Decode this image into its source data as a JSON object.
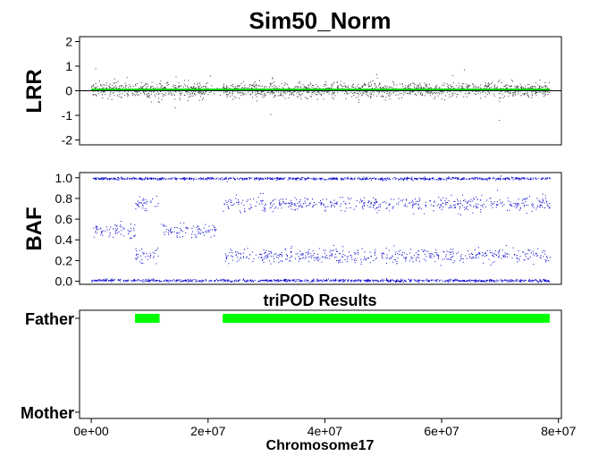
{
  "chart_data": [
    {
      "type": "scatter",
      "panel": "LRR",
      "title": "Sim50_Norm",
      "ylabel": "LRR",
      "ylim": [
        -2.2,
        2.2
      ],
      "yticks": [
        "-2",
        "-1",
        "0",
        "1",
        "2"
      ],
      "ytick_values": [
        -2,
        -1,
        0,
        1,
        2
      ],
      "xlim": [
        -2000000,
        80500000
      ],
      "point_color": "#333333",
      "line_color": "#00cc00",
      "reference_line": 0,
      "x_range": [
        0,
        78500000
      ],
      "trend": 0.05,
      "spread": 0.15,
      "sparse_region": [
        20000000,
        22500000
      ]
    },
    {
      "type": "scatter",
      "panel": "BAF",
      "ylabel": "BAF",
      "ylim": [
        -0.03,
        1.05
      ],
      "yticks": [
        "0.0",
        "0.2",
        "0.4",
        "0.6",
        "0.8",
        "1.0"
      ],
      "ytick_values": [
        0,
        0.2,
        0.4,
        0.6,
        0.8,
        1.0
      ],
      "xlim": [
        -2000000,
        80500000
      ],
      "point_color": "#0000cc",
      "bands": [
        {
          "x": [
            0,
            78500000
          ],
          "y": 0.01,
          "label": "homozygous-low"
        },
        {
          "x": [
            0,
            78500000
          ],
          "y": 0.995,
          "label": "homozygous-high"
        },
        {
          "x": [
            0,
            7500000
          ],
          "y": 0.5,
          "label": "heterozygous"
        },
        {
          "x": [
            7500000,
            11500000
          ],
          "y": 0.25,
          "label": "shifted-low"
        },
        {
          "x": [
            7500000,
            11500000
          ],
          "y": 0.75,
          "label": "shifted-high"
        },
        {
          "x": [
            12000000,
            21500000
          ],
          "y": 0.5,
          "label": "heterozygous"
        },
        {
          "x": [
            22500000,
            78500000
          ],
          "y": 0.25,
          "label": "shifted-low"
        },
        {
          "x": [
            22500000,
            78500000
          ],
          "y": 0.75,
          "label": "shifted-high"
        }
      ]
    },
    {
      "type": "segments",
      "panel": "triPOD",
      "title": "triPOD Results",
      "xlabel": "Chromosome17",
      "xlim": [
        -2000000,
        80500000
      ],
      "xticks": [
        "0e+00",
        "2e+07",
        "4e+07",
        "6e+07",
        "8e+07"
      ],
      "xtick_values": [
        0,
        20000000,
        40000000,
        60000000,
        80000000
      ],
      "categories": [
        "Father",
        "Mother"
      ],
      "segment_color": "#00ff00",
      "segments": [
        {
          "parent": "Father",
          "start": 7500000,
          "end": 11700000
        },
        {
          "parent": "Father",
          "start": 22500000,
          "end": 78500000
        }
      ]
    }
  ]
}
